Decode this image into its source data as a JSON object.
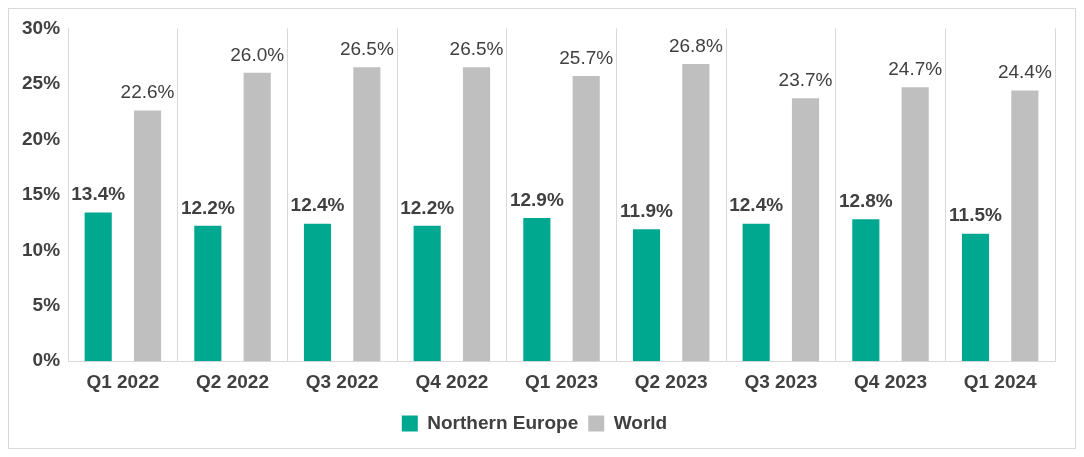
{
  "chart_data": {
    "type": "bar",
    "categories": [
      "Q1 2022",
      "Q2 2022",
      "Q3 2022",
      "Q4 2022",
      "Q1 2023",
      "Q2 2023",
      "Q3 2023",
      "Q4 2023",
      "Q1 2024"
    ],
    "series": [
      {
        "name": "Northern Europe",
        "color": "#00a88f",
        "values": [
          13.4,
          12.2,
          12.4,
          12.2,
          12.9,
          11.9,
          12.4,
          12.8,
          11.5
        ],
        "value_labels": [
          "13.4%",
          "12.2%",
          "12.4%",
          "12.2%",
          "12.9%",
          "11.9%",
          "12.4%",
          "12.8%",
          "11.5%"
        ]
      },
      {
        "name": "World",
        "color": "#bfbfbf",
        "values": [
          22.6,
          26.0,
          26.5,
          26.5,
          25.7,
          26.8,
          23.7,
          24.7,
          24.4
        ],
        "value_labels": [
          "22.6%",
          "26.0%",
          "26.5%",
          "26.5%",
          "25.7%",
          "26.8%",
          "23.7%",
          "24.7%",
          "24.4%"
        ]
      }
    ],
    "ylim": [
      0,
      30
    ],
    "yticks": [
      {
        "value": 0,
        "label": "0%"
      },
      {
        "value": 5,
        "label": "5%"
      },
      {
        "value": 10,
        "label": "10%"
      },
      {
        "value": 15,
        "label": "15%"
      },
      {
        "value": 20,
        "label": "20%"
      },
      {
        "value": 25,
        "label": "25%"
      },
      {
        "value": 30,
        "label": "30%"
      }
    ],
    "grid": "x",
    "legend": "bottom"
  }
}
